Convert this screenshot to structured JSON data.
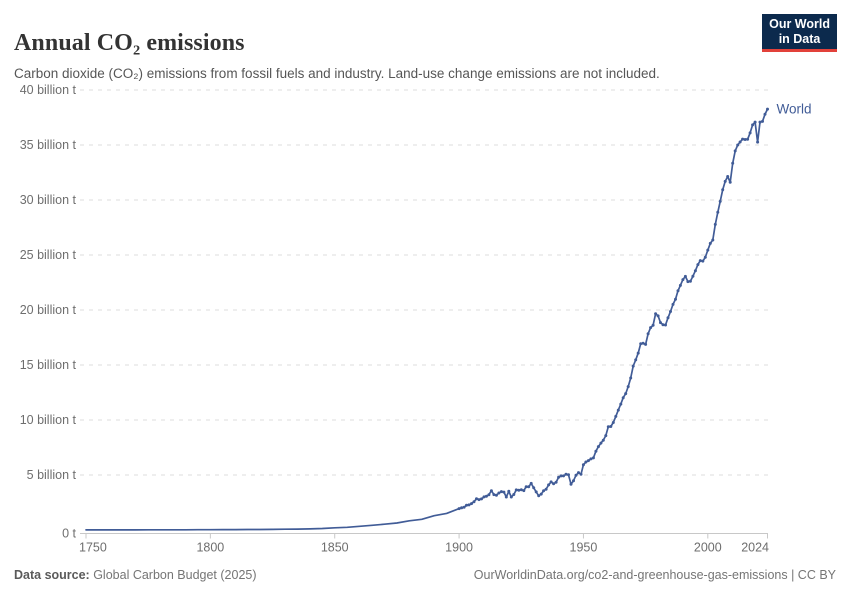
{
  "header": {
    "title": "Annual CO₂ emissions",
    "subtitle": "Carbon dioxide (CO₂) emissions from fossil fuels and industry. Land-use change emissions are not included.",
    "logo": {
      "line1": "Our World",
      "line2": "in Data",
      "bg_color": "#0c2a4d",
      "accent_color": "#e2413a"
    }
  },
  "footer": {
    "source_label": "Data source:",
    "source_value": " Global Carbon Budget (2025)",
    "url_text": "OurWorldinData.org/co2-and-greenhouse-gas-emissions | CC BY"
  },
  "chart_data": {
    "type": "line",
    "title": "Annual CO₂ emissions",
    "unit": "billion tonnes of CO₂ per year",
    "xlim": [
      1750,
      2024
    ],
    "ylim": [
      0,
      40
    ],
    "grid": "horizontal-dashed",
    "x_ticks": [
      1750,
      1800,
      1850,
      1900,
      1950,
      2000,
      2024
    ],
    "y_ticks": {
      "values": [
        0,
        5,
        10,
        15,
        20,
        25,
        30,
        35,
        40
      ],
      "labels": [
        "0 t",
        "5 billion t",
        "10 billion t",
        "15 billion t",
        "20 billion t",
        "25 billion t",
        "30 billion t",
        "35 billion t",
        "40 billion t"
      ]
    },
    "colors": {
      "line": "#415c97",
      "grid": "#dddddd",
      "axis": "#c8c8c8",
      "tick_text": "#6e6e6e"
    },
    "series": [
      {
        "name": "World",
        "color": "#415c97",
        "x": [
          1750,
          1755,
          1760,
          1765,
          1770,
          1775,
          1780,
          1785,
          1790,
          1795,
          1800,
          1805,
          1810,
          1815,
          1820,
          1825,
          1830,
          1835,
          1840,
          1845,
          1850,
          1855,
          1860,
          1865,
          1870,
          1875,
          1880,
          1885,
          1890,
          1895,
          1900,
          1901,
          1902,
          1903,
          1904,
          1905,
          1906,
          1907,
          1908,
          1909,
          1910,
          1911,
          1912,
          1913,
          1914,
          1915,
          1916,
          1917,
          1918,
          1919,
          1920,
          1921,
          1922,
          1923,
          1924,
          1925,
          1926,
          1927,
          1928,
          1929,
          1930,
          1931,
          1932,
          1933,
          1934,
          1935,
          1936,
          1937,
          1938,
          1939,
          1940,
          1941,
          1942,
          1943,
          1944,
          1945,
          1946,
          1947,
          1948,
          1949,
          1950,
          1951,
          1952,
          1953,
          1954,
          1955,
          1956,
          1957,
          1958,
          1959,
          1960,
          1961,
          1962,
          1963,
          1964,
          1965,
          1966,
          1967,
          1968,
          1969,
          1970,
          1971,
          1972,
          1973,
          1974,
          1975,
          1976,
          1977,
          1978,
          1979,
          1980,
          1981,
          1982,
          1983,
          1984,
          1985,
          1986,
          1987,
          1988,
          1989,
          1990,
          1991,
          1992,
          1993,
          1994,
          1995,
          1996,
          1997,
          1998,
          1999,
          2000,
          2001,
          2002,
          2003,
          2004,
          2005,
          2006,
          2007,
          2008,
          2009,
          2010,
          2011,
          2012,
          2013,
          2014,
          2015,
          2016,
          2017,
          2018,
          2019,
          2020,
          2021,
          2022,
          2023,
          2024
        ],
        "y": [
          0.009,
          0.01,
          0.011,
          0.012,
          0.013,
          0.014,
          0.015,
          0.017,
          0.019,
          0.024,
          0.03,
          0.033,
          0.037,
          0.041,
          0.049,
          0.058,
          0.069,
          0.083,
          0.098,
          0.135,
          0.197,
          0.25,
          0.34,
          0.43,
          0.53,
          0.64,
          0.84,
          0.97,
          1.3,
          1.51,
          1.95,
          2.02,
          2.07,
          2.25,
          2.28,
          2.4,
          2.57,
          2.84,
          2.76,
          2.83,
          3.01,
          3.06,
          3.21,
          3.57,
          3.22,
          3.16,
          3.36,
          3.49,
          3.45,
          3.0,
          3.52,
          3.0,
          3.23,
          3.65,
          3.62,
          3.66,
          3.58,
          3.94,
          3.93,
          4.24,
          3.84,
          3.46,
          3.11,
          3.26,
          3.56,
          3.71,
          4.1,
          4.37,
          4.21,
          4.34,
          4.79,
          4.92,
          4.92,
          5.06,
          5.02,
          4.16,
          4.48,
          4.97,
          5.22,
          5.06,
          5.93,
          6.18,
          6.31,
          6.46,
          6.55,
          7.16,
          7.58,
          7.9,
          8.16,
          8.58,
          9.39,
          9.41,
          9.77,
          10.33,
          10.9,
          11.45,
          12.03,
          12.4,
          13.04,
          13.82,
          14.9,
          15.46,
          16.08,
          16.94,
          16.97,
          16.87,
          17.84,
          18.4,
          18.62,
          19.66,
          19.46,
          18.85,
          18.66,
          18.64,
          19.29,
          19.86,
          20.51,
          20.97,
          21.75,
          22.24,
          22.76,
          23.05,
          22.58,
          22.61,
          23.07,
          23.57,
          24.13,
          24.49,
          24.45,
          24.79,
          25.45,
          26.05,
          26.36,
          27.78,
          28.88,
          29.87,
          30.93,
          31.69,
          32.14,
          31.61,
          33.34,
          34.46,
          35.0,
          35.27,
          35.54,
          35.5,
          35.52,
          36.1,
          36.83,
          37.08,
          35.26,
          37.08,
          37.15,
          37.79,
          38.26
        ]
      }
    ]
  }
}
